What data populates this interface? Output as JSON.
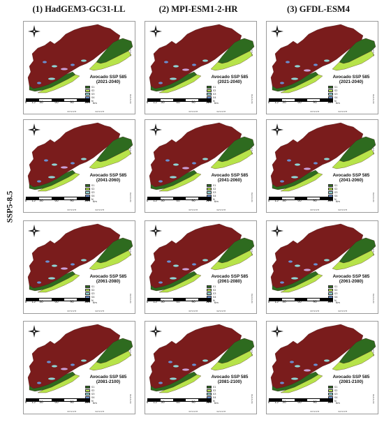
{
  "columns": [
    {
      "title": "(1) HadGEM3-GC31-LL"
    },
    {
      "title": "(2) MPI-ESM1-2-HR"
    },
    {
      "title": "(3) GFDL-ESM4"
    }
  ],
  "row_label": "SSP5-8.5",
  "periods": [
    {
      "title": "Avocado SSP 585",
      "period": "(2021-2040)"
    },
    {
      "title": "Avocado SSP 585",
      "period": "(2041-2060)"
    },
    {
      "title": "Avocado SSP 585",
      "period": "(2061-2080)"
    },
    {
      "title": "Avocado SSP 585",
      "period": "(2081-2100)"
    }
  ],
  "legend_classes": [
    {
      "label": "S1",
      "color": "#2e6b1f"
    },
    {
      "label": "S2",
      "color": "#b7e34a"
    },
    {
      "label": "S3",
      "color": "#8fd6d6"
    },
    {
      "label": "S4",
      "color": "#6a8fd0"
    },
    {
      "label": "N",
      "color": "#7a1c1c"
    }
  ],
  "scale": {
    "ticks": [
      "0",
      "15",
      "30",
      "60",
      "90",
      "120"
    ],
    "unit": "Km"
  },
  "coordinates": {
    "x_labels": [
      "32°0'0\"E",
      "33°0'0\"E",
      "34°0'0\"E",
      "35°0'0\"E"
    ],
    "y_labels": [
      "37°0'0\"N",
      "36°0'0\"N"
    ]
  },
  "colors": {
    "unsuitable": "#7a1c1c",
    "s1": "#2e6b1f",
    "s2": "#b7e34a",
    "s3": "#8fd6d6",
    "s4": "#6a8fd0",
    "pink": "#c9a0d8"
  }
}
